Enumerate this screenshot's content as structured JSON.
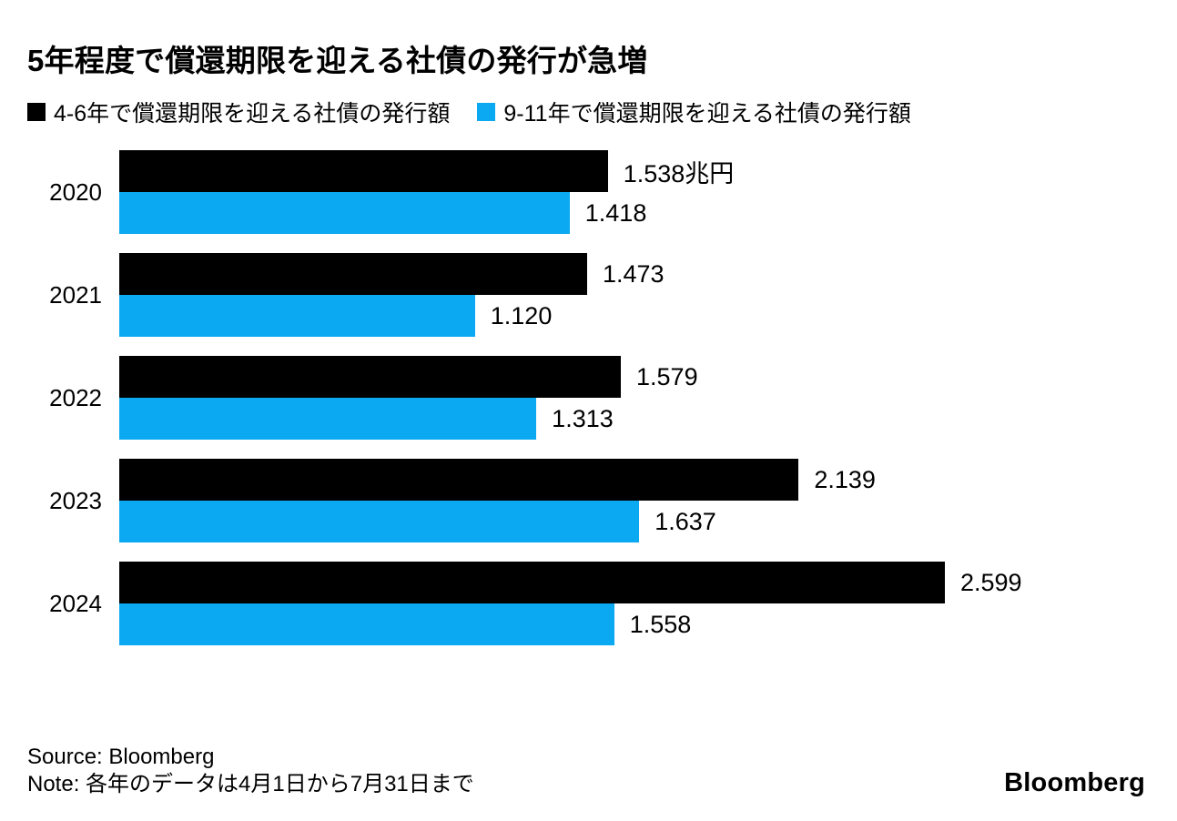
{
  "title": "5年程度で償還期限を迎える社債の発行が急増",
  "chart_data": {
    "type": "bar",
    "orientation": "horizontal",
    "title": "5年程度で償還期限を迎える社債の発行が急増",
    "unit": "兆円",
    "categories": [
      "2020",
      "2021",
      "2022",
      "2023",
      "2024"
    ],
    "series": [
      {
        "name": "4-6年で償還期限を迎える社債の発行額",
        "color": "#000000",
        "values": [
          1.538,
          1.473,
          1.579,
          2.139,
          2.599
        ],
        "labels": [
          "1.538兆円",
          "1.473",
          "1.579",
          "2.139",
          "2.599"
        ]
      },
      {
        "name": "9-11年で償還期限を迎える社債の発行額",
        "color": "#0aa9f2",
        "values": [
          1.418,
          1.12,
          1.313,
          1.637,
          1.558
        ],
        "labels": [
          "1.418",
          "1.120",
          "1.313",
          "1.637",
          "1.558"
        ]
      }
    ],
    "xlim": [
      0,
      3.33
    ],
    "grid": false,
    "legend_position": "top",
    "value_labels": "outside-end"
  },
  "footer": {
    "source": "Source: Bloomberg",
    "note": "Note: 各年のデータは4月1日から7月31日まで",
    "logo": "Bloomberg"
  }
}
